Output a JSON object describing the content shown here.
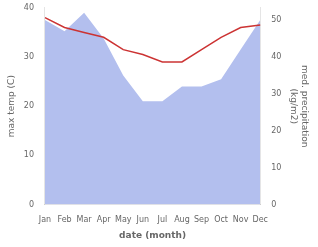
{
  "chart_data": {
    "type": "line",
    "categories": [
      "Jan",
      "Feb",
      "Mar",
      "Apr",
      "May",
      "Jun",
      "Jul",
      "Aug",
      "Sep",
      "Oct",
      "Nov",
      "Dec"
    ],
    "series": [
      {
        "type": "area",
        "axis": "y2",
        "color": "#b3bfee",
        "values": [
          50,
          47,
          52,
          45,
          35,
          28,
          28,
          32,
          32,
          34,
          42,
          50
        ]
      },
      {
        "type": "line",
        "color": "#cc3333",
        "values": [
          38.0,
          36.0,
          35.0,
          34.0,
          31.5,
          30.5,
          29.0,
          29.0,
          31.5,
          34.0,
          36.0,
          36.5
        ]
      }
    ],
    "xlabel": "date (month)",
    "ylabel": "max temp (C)",
    "y2label": "med. precipitation\n(kg/m2)",
    "ylim": [
      0,
      40
    ],
    "yticks": [
      0,
      10,
      20,
      30,
      40
    ],
    "y2lim": [
      0,
      53.33
    ],
    "y2ticks": [
      0,
      10,
      20,
      30,
      40,
      50
    ],
    "grid": false
  }
}
